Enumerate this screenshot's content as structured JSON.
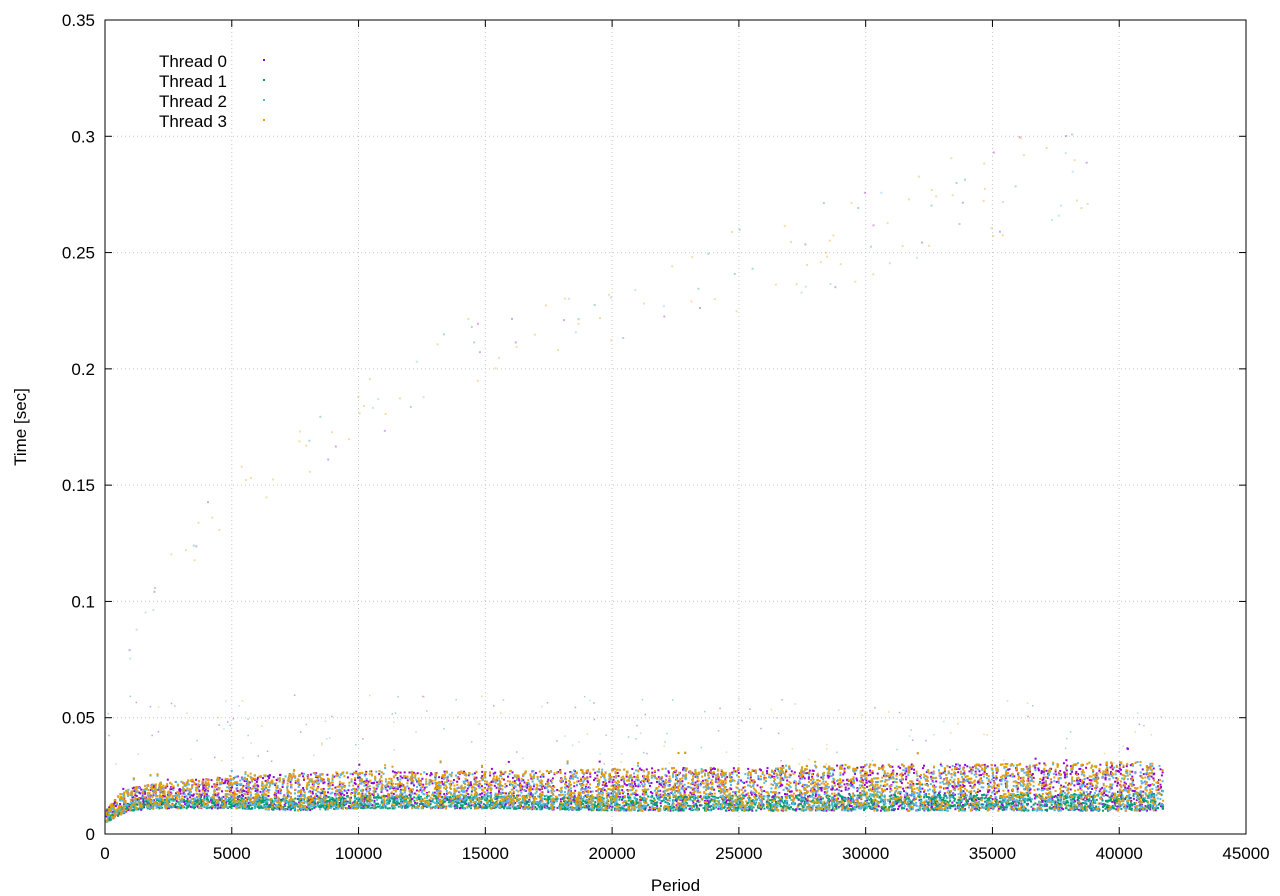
{
  "chart_data": {
    "type": "scatter",
    "title": "",
    "xlabel": "Period",
    "ylabel": "Time [sec]",
    "xlim": [
      0,
      45000
    ],
    "ylim": [
      0,
      0.35
    ],
    "x_ticks": [
      0,
      5000,
      10000,
      15000,
      20000,
      25000,
      30000,
      35000,
      40000,
      45000
    ],
    "x_tick_labels": [
      "0",
      "5000",
      "10000",
      "15000",
      "20000",
      "25000",
      "30000",
      "35000",
      "40000",
      "45000"
    ],
    "y_ticks": [
      0,
      0.05,
      0.1,
      0.15,
      0.2,
      0.25,
      0.3,
      0.35
    ],
    "y_tick_labels": [
      "0",
      "0.05",
      "0.1",
      "0.15",
      "0.2",
      "0.25",
      "0.3",
      "0.35"
    ],
    "grid": true,
    "legend_position": "top-left",
    "series": [
      {
        "name": "Thread 0",
        "color": "#9400d3"
      },
      {
        "name": "Thread 1",
        "color": "#009e73"
      },
      {
        "name": "Thread 2",
        "color": "#56b4e9"
      },
      {
        "name": "Thread 3",
        "color": "#e69f00"
      }
    ],
    "band_profile": {
      "x": [
        0,
        500,
        1000,
        2000,
        3000,
        5000,
        7500,
        10000,
        15000,
        20000,
        25000,
        30000,
        35000,
        40000,
        41700
      ],
      "low": [
        0.005,
        0.008,
        0.01,
        0.011,
        0.011,
        0.011,
        0.01,
        0.011,
        0.011,
        0.01,
        0.01,
        0.01,
        0.01,
        0.01,
        0.01
      ],
      "high": [
        0.01,
        0.017,
        0.02,
        0.022,
        0.023,
        0.025,
        0.026,
        0.027,
        0.027,
        0.028,
        0.029,
        0.03,
        0.03,
        0.031,
        0.031
      ]
    },
    "outlier_trend": {
      "x": [
        300,
        1000,
        2000,
        3000,
        5000,
        7500,
        10000,
        12500,
        15000,
        17500,
        20000,
        25000,
        30000,
        35000,
        38500
      ],
      "y": [
        0.045,
        0.085,
        0.105,
        0.125,
        0.15,
        0.165,
        0.185,
        0.205,
        0.215,
        0.22,
        0.23,
        0.25,
        0.265,
        0.285,
        0.292
      ]
    },
    "x_max": 41700
  }
}
